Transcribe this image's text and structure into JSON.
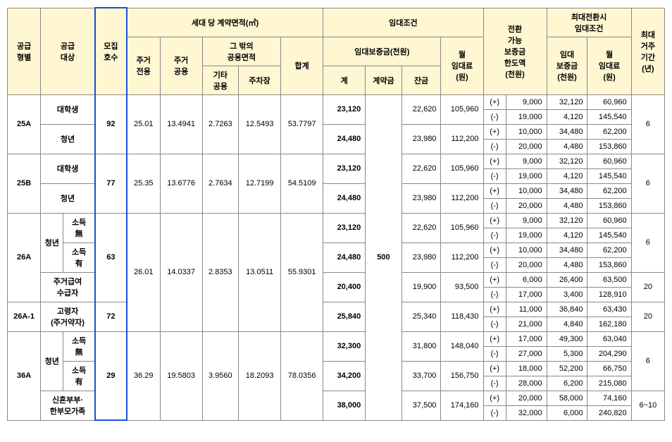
{
  "headers": {
    "supplyType": "공급\n형별",
    "supplyTarget": "공급\n대상",
    "recruitUnits": "모집\n호수",
    "contractAreaGroup": "세대 당 계약면적(㎡)",
    "exclusive": "주거\n전용",
    "commonLiving": "주거\n공용",
    "otherCommonGroup": "그 밖의\n공용면적",
    "etcCommon": "기타\n공용",
    "parking": "주차장",
    "total": "합계",
    "leaseCondGroup": "임대조건",
    "depositGroup": "임대보증금(천원)",
    "depositTotal": "계",
    "contractPay": "계약금",
    "balance": "잔금",
    "monthlyRent": "월\n임대료\n(원)",
    "convertLimit": "전환\n가능\n보증금\n한도액\n(천원)",
    "maxConvCondGroup": "최대전환시\n임대조건",
    "leaseDeposit": "임대\n보증금\n(천원)",
    "monthlyRent2": "월\n임대료\n(원)",
    "maxPeriod": "최대\n거주\n기간\n(년)"
  },
  "labels": {
    "student": "대학생",
    "youth": "청년",
    "incomeNo": "소득\n無",
    "incomeYes": "소득\n有",
    "housingBenefit": "주거급여\n수급자",
    "elderly": "고령자\n(주거약자)",
    "newlywed": "신혼부부·\n한부모가족"
  },
  "types": {
    "t25A": "25A",
    "t25B": "25B",
    "t26A": "26A",
    "t26A1": "26A-1",
    "t36A": "36A"
  },
  "units": {
    "u25A": "92",
    "u25B": "77",
    "u26A": "63",
    "u26A1": "72",
    "u36A": "29"
  },
  "area": {
    "a25A": {
      "excl": "25.01",
      "comm": "13.4941",
      "etc": "2.7263",
      "park": "12.5493",
      "tot": "53.7797"
    },
    "a25B": {
      "excl": "25.35",
      "comm": "13.6776",
      "etc": "2.7634",
      "park": "12.7199",
      "tot": "54.5109"
    },
    "a26A": {
      "excl": "26.01",
      "comm": "14.0337",
      "etc": "2.8353",
      "park": "13.0511",
      "tot": "55.9301"
    },
    "a36A": {
      "excl": "36.29",
      "comm": "19.5803",
      "etc": "3.9560",
      "park": "18.2093",
      "tot": "78.0356"
    }
  },
  "contractPay": "500",
  "rows": {
    "r1": {
      "dep": "23,120",
      "bal": "22,620",
      "rent": "105,960",
      "p": "(+)",
      "lim": "9,000",
      "ld": "32,120",
      "mr": "60,960"
    },
    "r2": {
      "p": "(-)",
      "lim": "19,000",
      "ld": "4,120",
      "mr": "145,540"
    },
    "r3": {
      "dep": "24,480",
      "bal": "23,980",
      "rent": "112,200",
      "p": "(+)",
      "lim": "10,000",
      "ld": "34,480",
      "mr": "62,200"
    },
    "r4": {
      "p": "(-)",
      "lim": "20,000",
      "ld": "4,480",
      "mr": "153,860"
    },
    "r5": {
      "dep": "23,120",
      "bal": "22,620",
      "rent": "105,960",
      "p": "(+)",
      "lim": "9,000",
      "ld": "32,120",
      "mr": "60,960"
    },
    "r6": {
      "p": "(-)",
      "lim": "19,000",
      "ld": "4,120",
      "mr": "145,540"
    },
    "r7": {
      "dep": "24,480",
      "bal": "23,980",
      "rent": "112,200",
      "p": "(+)",
      "lim": "10,000",
      "ld": "34,480",
      "mr": "62,200"
    },
    "r8": {
      "p": "(-)",
      "lim": "20,000",
      "ld": "4,480",
      "mr": "153,860"
    },
    "r9": {
      "dep": "23,120",
      "bal": "22,620",
      "rent": "105,960",
      "p": "(+)",
      "lim": "9,000",
      "ld": "32,120",
      "mr": "60,960"
    },
    "r10": {
      "p": "(-)",
      "lim": "19,000",
      "ld": "4,120",
      "mr": "145,540"
    },
    "r11": {
      "dep": "24,480",
      "bal": "23,980",
      "rent": "112,200",
      "p": "(+)",
      "lim": "10,000",
      "ld": "34,480",
      "mr": "62,200"
    },
    "r12": {
      "p": "(-)",
      "lim": "20,000",
      "ld": "4,480",
      "mr": "153,860"
    },
    "r13": {
      "dep": "20,400",
      "bal": "19,900",
      "rent": "93,500",
      "p": "(+)",
      "lim": "6,000",
      "ld": "26,400",
      "mr": "63,500"
    },
    "r14": {
      "p": "(-)",
      "lim": "17,000",
      "ld": "3,400",
      "mr": "128,910"
    },
    "r15": {
      "dep": "25,840",
      "bal": "25,340",
      "rent": "118,430",
      "p": "(+)",
      "lim": "11,000",
      "ld": "36,840",
      "mr": "63,430"
    },
    "r16": {
      "p": "(-)",
      "lim": "21,000",
      "ld": "4,840",
      "mr": "162,180"
    },
    "r17": {
      "dep": "32,300",
      "bal": "31,800",
      "rent": "148,040",
      "p": "(+)",
      "lim": "17,000",
      "ld": "49,300",
      "mr": "63,040"
    },
    "r18": {
      "p": "(-)",
      "lim": "27,000",
      "ld": "5,300",
      "mr": "204,290"
    },
    "r19": {
      "dep": "34,200",
      "bal": "33,700",
      "rent": "156,750",
      "p": "(+)",
      "lim": "18,000",
      "ld": "52,200",
      "mr": "66,750"
    },
    "r20": {
      "p": "(-)",
      "lim": "28,000",
      "ld": "6,200",
      "mr": "215,080"
    },
    "r21": {
      "dep": "38,000",
      "bal": "37,500",
      "rent": "174,160",
      "p": "(+)",
      "lim": "20,000",
      "ld": "58,000",
      "mr": "74,160"
    },
    "r22": {
      "p": "(-)",
      "lim": "32,000",
      "ld": "6,000",
      "mr": "240,820"
    }
  },
  "periods": {
    "p25A": "6",
    "p25B": "6",
    "p26A_youth": "6",
    "p26A_hb": "20",
    "p26A1": "20",
    "p36A_youth": "6",
    "p36A_nw": "6~10"
  }
}
